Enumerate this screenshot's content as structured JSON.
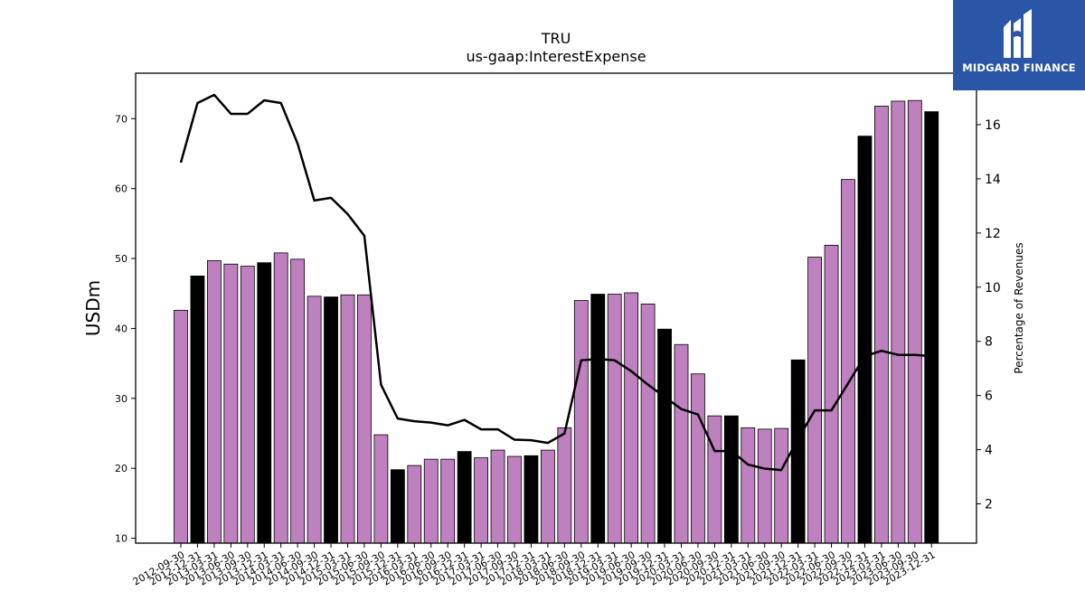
{
  "brand": {
    "name": "MIDGARD FINANCE",
    "background": "#2b56a8",
    "icon": "midgard-logo-icon"
  },
  "chart_data": {
    "type": "bar",
    "title": "TRU",
    "subtitle": "us-gaap:InterestExpense",
    "ylabel": "USDm",
    "y2label": "Percentage of Revenues",
    "ylim": [
      9.3,
      76.5
    ],
    "y2lim": [
      0.55,
      17.9
    ],
    "yticks": [
      10,
      20,
      30,
      40,
      50,
      60,
      70
    ],
    "y2ticks": [
      2,
      4,
      6,
      8,
      10,
      12,
      14,
      16
    ],
    "grid": false,
    "colors": {
      "quarter": "#bf80bf",
      "year_end": "#000000",
      "line": "#000000"
    },
    "categories": [
      "2012-09-30",
      "2012-12-31",
      "2013-03-31",
      "2013-06-30",
      "2013-09-30",
      "2013-12-31",
      "2014-03-31",
      "2014-06-30",
      "2014-09-30",
      "2014-12-31",
      "2015-03-31",
      "2015-06-30",
      "2015-09-30",
      "2015-12-31",
      "2016-03-31",
      "2016-06-30",
      "2016-09-30",
      "2016-12-31",
      "2017-03-31",
      "2017-06-30",
      "2017-09-30",
      "2017-12-31",
      "2018-03-31",
      "2018-06-30",
      "2018-09-30",
      "2018-12-31",
      "2019-03-31",
      "2019-06-30",
      "2019-09-30",
      "2019-12-31",
      "2020-03-31",
      "2020-06-30",
      "2020-09-30",
      "2020-12-31",
      "2021-03-31",
      "2021-06-30",
      "2021-09-30",
      "2021-12-31",
      "2022-03-31",
      "2022-06-30",
      "2022-09-30",
      "2022-12-31",
      "2023-03-31",
      "2023-06-30",
      "2023-09-30",
      "2023-12-31"
    ],
    "series": [
      {
        "type": "bar",
        "values": [
          42.6,
          47.5,
          49.7,
          49.2,
          48.9,
          49.4,
          50.8,
          49.9,
          44.6,
          44.5,
          44.8,
          44.8,
          24.8,
          19.8,
          20.4,
          21.3,
          21.3,
          22.4,
          21.5,
          22.6,
          21.7,
          21.8,
          22.6,
          25.8,
          44.0,
          44.9,
          44.9,
          45.1,
          43.5,
          39.9,
          37.7,
          33.5,
          27.5,
          27.5,
          25.8,
          25.6,
          25.7,
          35.5,
          50.2,
          51.9,
          61.3,
          67.5,
          71.8,
          72.5,
          72.6,
          71.0
        ],
        "year_end": [
          false,
          true,
          false,
          false,
          false,
          true,
          false,
          false,
          false,
          true,
          false,
          false,
          false,
          true,
          false,
          false,
          false,
          true,
          false,
          false,
          false,
          true,
          false,
          false,
          false,
          true,
          false,
          false,
          false,
          true,
          false,
          false,
          false,
          true,
          false,
          false,
          false,
          true,
          false,
          false,
          false,
          true,
          false,
          false,
          false,
          true
        ]
      },
      {
        "type": "line",
        "axis": "right",
        "values": [
          14.6,
          16.8,
          17.1,
          16.4,
          16.4,
          16.9,
          16.8,
          15.3,
          13.2,
          13.3,
          12.7,
          11.9,
          6.4,
          5.15,
          5.05,
          5.0,
          4.9,
          5.1,
          4.75,
          4.75,
          4.37,
          4.35,
          4.25,
          4.6,
          7.3,
          7.35,
          7.3,
          6.9,
          6.4,
          5.95,
          5.5,
          5.3,
          3.95,
          3.95,
          3.45,
          3.3,
          3.25,
          4.4,
          5.45,
          5.45,
          6.45,
          7.45,
          7.65,
          7.5,
          7.5,
          7.45
        ]
      }
    ]
  }
}
